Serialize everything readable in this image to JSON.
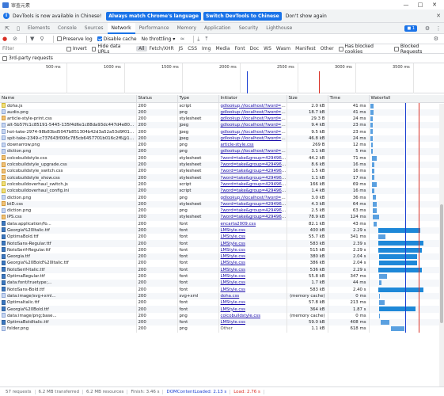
{
  "window": {
    "title": "审查元素"
  },
  "infobar": {
    "message": "DevTools is now available in Chinese!",
    "btn_match": "Always match Chrome's language",
    "btn_switch": "Switch DevTools to Chinese",
    "dont_show": "Don't show again"
  },
  "tabs": [
    "Elements",
    "Console",
    "Sources",
    "Network",
    "Performance",
    "Memory",
    "Application",
    "Security",
    "Lighthouse"
  ],
  "active_tab": "Network",
  "issues_badge": "1",
  "toolbar": {
    "preserve_log": "Preserve log",
    "disable_cache": "Disable cache",
    "throttling": "No throttling"
  },
  "filterbar": {
    "placeholder": "Filter",
    "invert": "Invert",
    "hide_data_urls": "Hide data URLs",
    "types": [
      "All",
      "Fetch/XHR",
      "JS",
      "CSS",
      "Img",
      "Media",
      "Font",
      "Doc",
      "WS",
      "Wasm",
      "Manifest",
      "Other"
    ],
    "blocked_cookies": "Has blocked cookies",
    "blocked_requests": "Blocked Requests",
    "third_party": "3rd-party requests"
  },
  "overview_ticks": [
    "500 ms",
    "1000 ms",
    "1500 ms",
    "2000 ms",
    "2500 ms",
    "3000 ms",
    "3500 ms"
  ],
  "columns": [
    "Name",
    "Status",
    "Type",
    "Initiator",
    "Size",
    "Time",
    "Waterfall"
  ],
  "rows": [
    [
      "doha.js",
      "200",
      "script",
      "gdlookup://localhost/?word=st...",
      "2.0 kB",
      "41 ms",
      "js"
    ],
    [
      "audio.png",
      "200",
      "png",
      "gdlookup://localhost/?word=st...",
      "18.7 kB",
      "41 ms",
      "img"
    ],
    [
      "article-style-print.css",
      "200",
      "stylesheet",
      "gdlookup://localhost/?word=st...",
      "29.3 B",
      "24 ms",
      "css"
    ],
    [
      "alt-5b57fc1c85191-5445-135f4d6e1c88da93dc447d4e805c...",
      "200",
      "jpeg",
      "gdlookup://localhost/?word=st...",
      "9.4 kB",
      "23 ms",
      "img"
    ],
    [
      "hot-take-2974-98b83bd5047b851304b42d3a52a53d9f01x.jpg",
      "200",
      "jpeg",
      "gdlookup://localhost/?word=st...",
      "9.5 kB",
      "23 ms",
      "img"
    ],
    [
      "spit-take-2349-c737643f006c785cb6457701b016c2f6@1x.jpg",
      "200",
      "jpeg",
      "gdlookup://localhost/?word=st...",
      "46.8 kB",
      "24 ms",
      "img"
    ],
    [
      "downarrow.png",
      "200",
      "png",
      "article-style.css",
      "269 B",
      "12 ms",
      "img"
    ],
    [
      "diction.png",
      "200",
      "png",
      "gdlookup://localhost/?word=st...",
      "3.1 kB",
      "5 ms",
      "img"
    ],
    [
      "colcobuildstyle.css",
      "200",
      "stylesheet",
      "?word=take&group=4294967...",
      "44.2 kB",
      "71 ms",
      "css"
    ],
    [
      "colcobuildstyle_upgrade.css",
      "200",
      "stylesheet",
      "?word=take&group=4294967...",
      "8.6 kB",
      "16 ms",
      "css"
    ],
    [
      "colcobuildstyle_switch.css",
      "200",
      "stylesheet",
      "?word=take&group=4294967...",
      "1.5 kB",
      "16 ms",
      "css"
    ],
    [
      "colcobuildstyle_show.css",
      "200",
      "stylesheet",
      "?word=take&group=4294967...",
      "1.1 kB",
      "17 ms",
      "css"
    ],
    [
      "colcobuildoverhaul_switch.js",
      "200",
      "script",
      "?word=take&group=4294967...",
      "166 kB",
      "69 ms",
      "js"
    ],
    [
      "colcobuildoverhaul_config.ini",
      "200",
      "script",
      "?word=take&group=4294967...",
      "1.4 kB",
      "16 ms",
      "js"
    ],
    [
      "diction.png",
      "200",
      "png",
      "gdlookup://localhost/?word=st...",
      "3.0 kB",
      "36 ms",
      "img"
    ],
    [
      "btD.css",
      "200",
      "stylesheet",
      "?word=take&group=4294967...",
      "4.3 kB",
      "64 ms",
      "css"
    ],
    [
      "diction.png",
      "200",
      "png",
      "?word=take&group=4294967...",
      "2.5 kB",
      "63 ms",
      "img"
    ],
    [
      "IPS.css",
      "200",
      "stylesheet",
      "?word=take&group=4294967...",
      "78.9 kB",
      "124 ms",
      "css"
    ],
    [
      "data:application/fo...",
      "200",
      "font",
      "encarta2009.css",
      "82.1 kB",
      "43 ms",
      "font"
    ],
    [
      "Georgia%20Italic.ttf",
      "200",
      "font",
      "LMStyle.css",
      "400 kB",
      "2.29 s",
      "font"
    ],
    [
      "OptimaBold.ttf",
      "200",
      "font",
      "LMStyle.css",
      "55.7 kB",
      "341 ms",
      "font"
    ],
    [
      "NotoSans-Regular.ttf",
      "200",
      "font",
      "LMStyle.css",
      "583 kB",
      "2.39 s",
      "font"
    ],
    [
      "NotoSerif-Regular.ttf",
      "200",
      "font",
      "LMStyle.css",
      "515 kB",
      "2.29 s",
      "font"
    ],
    [
      "Georgia.ttf",
      "200",
      "font",
      "LMStyle.css",
      "380 kB",
      "2.04 s",
      "font"
    ],
    [
      "Georgia%20Bold%20Italic.ttf",
      "200",
      "font",
      "LMStyle.css",
      "386 kB",
      "2.04 s",
      "font"
    ],
    [
      "NotoSerif-Italic.ttf",
      "200",
      "font",
      "LMStyle.css",
      "536 kB",
      "2.29 s",
      "font"
    ],
    [
      "OptimaRegular.ttf",
      "200",
      "font",
      "LMStyle.css",
      "55.8 kB",
      "347 ms",
      "font"
    ],
    [
      "data:font/truetype;...",
      "200",
      "font",
      "LMStyle.css",
      "1.7 kB",
      "44 ms",
      "font"
    ],
    [
      "NotoSans-Bold.ttf",
      "200",
      "font",
      "LMStyle.css",
      "583 kB",
      "2.40 s",
      "font"
    ],
    [
      "data:image/svg+xml...",
      "200",
      "svg+xml",
      "doha.css",
      "(memory cache)",
      "0 ms",
      "img"
    ],
    [
      "OptimaItalic.ttf",
      "200",
      "font",
      "LMStyle.css",
      "57.8 kB",
      "213 ms",
      "font"
    ],
    [
      "Georgia%20Bold.ttf",
      "200",
      "font",
      "LMStyle.css",
      "364 kB",
      "1.87 s",
      "font"
    ],
    [
      "data:image/png;base...",
      "200",
      "png",
      "colcobuildstyle.css",
      "(memory cache)",
      "0 ms",
      "img"
    ],
    [
      "OptimaBoldItalic.ttf",
      "200",
      "font",
      "LMStyle.css",
      "59.0 kB",
      "408 ms",
      "font"
    ],
    [
      "folder.png",
      "200",
      "png",
      "Other",
      "1.1 kB",
      "618 ms",
      "img"
    ]
  ],
  "waterfall": [
    [
      0.02,
      0.04
    ],
    [
      0.02,
      0.04
    ],
    [
      0.02,
      0.03
    ],
    [
      0.02,
      0.03
    ],
    [
      0.02,
      0.03
    ],
    [
      0.02,
      0.03
    ],
    [
      0.03,
      0.02
    ],
    [
      0.03,
      0.02
    ],
    [
      0.04,
      0.06
    ],
    [
      0.04,
      0.03
    ],
    [
      0.04,
      0.03
    ],
    [
      0.04,
      0.03
    ],
    [
      0.04,
      0.06
    ],
    [
      0.04,
      0.03
    ],
    [
      0.05,
      0.04
    ],
    [
      0.05,
      0.05
    ],
    [
      0.05,
      0.05
    ],
    [
      0.05,
      0.09
    ],
    [
      0.06,
      0.04
    ],
    [
      0.12,
      0.58
    ],
    [
      0.12,
      0.1
    ],
    [
      0.12,
      0.62
    ],
    [
      0.12,
      0.6
    ],
    [
      0.14,
      0.52
    ],
    [
      0.14,
      0.52
    ],
    [
      0.12,
      0.6
    ],
    [
      0.14,
      0.1
    ],
    [
      0.14,
      0.03
    ],
    [
      0.12,
      0.62
    ],
    [
      0.14,
      0.01
    ],
    [
      0.14,
      0.07
    ],
    [
      0.14,
      0.5
    ],
    [
      0.14,
      0.01
    ],
    [
      0.16,
      0.12
    ],
    [
      0.3,
      0.18
    ]
  ],
  "status": {
    "requests": "57 requests",
    "transferred": "6.2 MB transferred",
    "resources": "6.2 MB resources",
    "finish": "Finish: 3.46 s",
    "dcl": "DOMContentLoaded: 2.13 s",
    "load": "Load: 2.76 s"
  }
}
